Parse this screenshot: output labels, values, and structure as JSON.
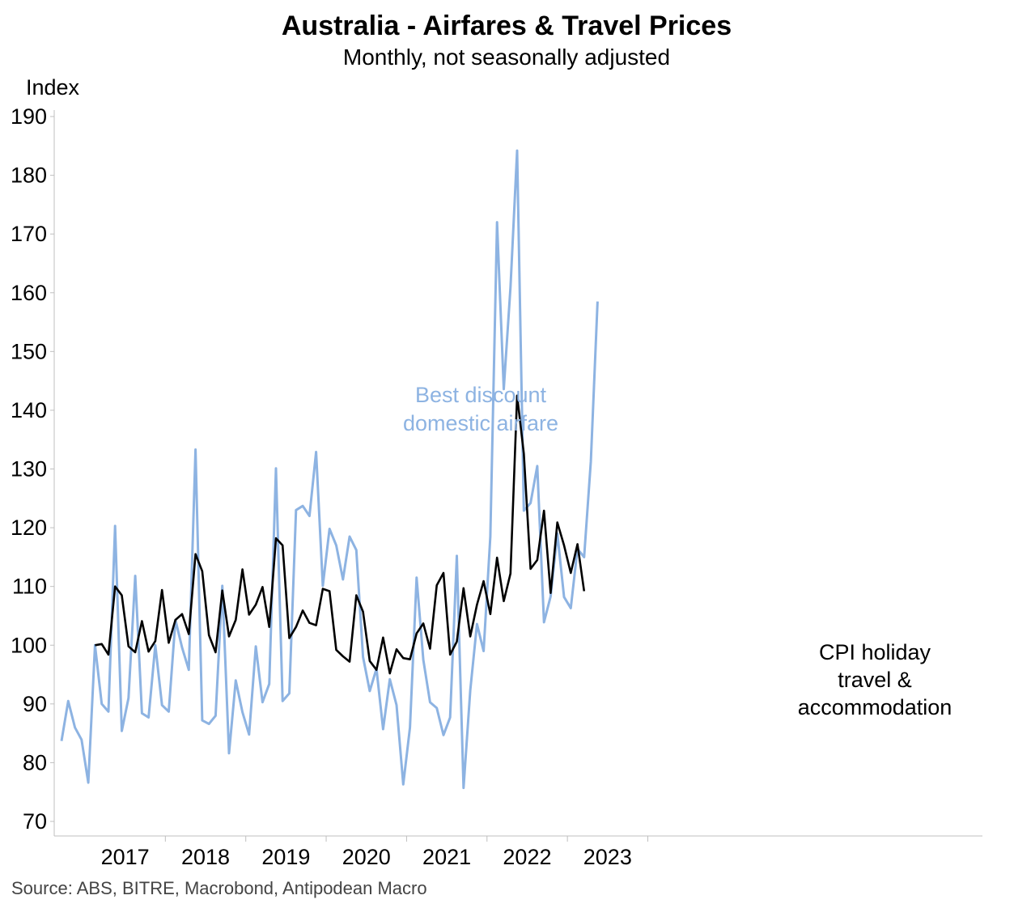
{
  "chart_data": {
    "type": "line",
    "title": "Australia - Airfares & Travel Prices",
    "subtitle": "Monthly, not seasonally adjusted",
    "ylabel": "Index",
    "ylim": [
      70,
      190
    ],
    "yticks": [
      70,
      80,
      90,
      100,
      110,
      120,
      130,
      140,
      150,
      160,
      170,
      180,
      190
    ],
    "x_start": "2016-09",
    "x_end": "2023-12",
    "xtick_labels": [
      "2017",
      "2018",
      "2019",
      "2020",
      "2021",
      "2022",
      "2023"
    ],
    "grid": false,
    "legend": "none (series labelled directly on chart)",
    "source": "Source: ABS, BITRE, Macrobond, Antipodean Macro",
    "series": [
      {
        "name": "Best discount domestic airfare",
        "label_lines": [
          "Best discount",
          "domestic airfare"
        ],
        "color": "#8db3e2",
        "start": "2016-09",
        "values": [
          83.7,
          90.5,
          86.0,
          83.9,
          76.6,
          100.0,
          90.0,
          88.7,
          120.3,
          85.4,
          91.0,
          111.8,
          88.4,
          87.7,
          100.0,
          89.8,
          88.7,
          104.3,
          99.6,
          95.8,
          133.3,
          87.2,
          86.6,
          88.0,
          110.1,
          81.6,
          94.0,
          88.6,
          84.8,
          99.8,
          90.3,
          93.4,
          130.1,
          90.5,
          91.8,
          123.0,
          123.7,
          122.0,
          132.9,
          110.1,
          119.8,
          117.0,
          111.2,
          118.5,
          116.2,
          98.0,
          92.2,
          96.0,
          85.7,
          94.2,
          89.8,
          76.3,
          86.0,
          111.5,
          97.5,
          90.3,
          89.3,
          84.7,
          87.7,
          115.2,
          75.7,
          92.3,
          103.6,
          99.0,
          118.5,
          172.0,
          143.6,
          160.9,
          184.2,
          122.9,
          124.2,
          130.5,
          103.9,
          108.3,
          119.0,
          108.2,
          106.3,
          116.4,
          115.0,
          131.3,
          158.5
        ]
      },
      {
        "name": "CPI holiday travel & accommodation",
        "label_lines": [
          "CPI holiday",
          "travel &",
          "accommodation"
        ],
        "color": "#000000",
        "start": "2017-02",
        "values": [
          100.0,
          100.2,
          98.4,
          110.0,
          108.5,
          99.8,
          98.8,
          104.1,
          98.9,
          100.7,
          109.4,
          100.4,
          104.3,
          105.3,
          101.9,
          115.5,
          112.6,
          101.7,
          98.8,
          109.3,
          101.5,
          104.3,
          112.9,
          105.2,
          106.9,
          109.9,
          103.1,
          118.2,
          117.0,
          101.2,
          103.1,
          105.9,
          103.8,
          103.4,
          109.6,
          109.2,
          99.2,
          98.1,
          97.2,
          108.5,
          105.7,
          97.3,
          95.8,
          101.3,
          95.2,
          99.3,
          97.8,
          97.6,
          102.0,
          103.7,
          99.4,
          110.2,
          112.3,
          98.4,
          100.6,
          109.7,
          101.5,
          106.9,
          110.9,
          105.3,
          114.9,
          107.5,
          112.2,
          142.5,
          132.6,
          113.0,
          114.5,
          122.9,
          108.9,
          120.9,
          117.0,
          112.3,
          117.2,
          109.2
        ]
      }
    ]
  }
}
